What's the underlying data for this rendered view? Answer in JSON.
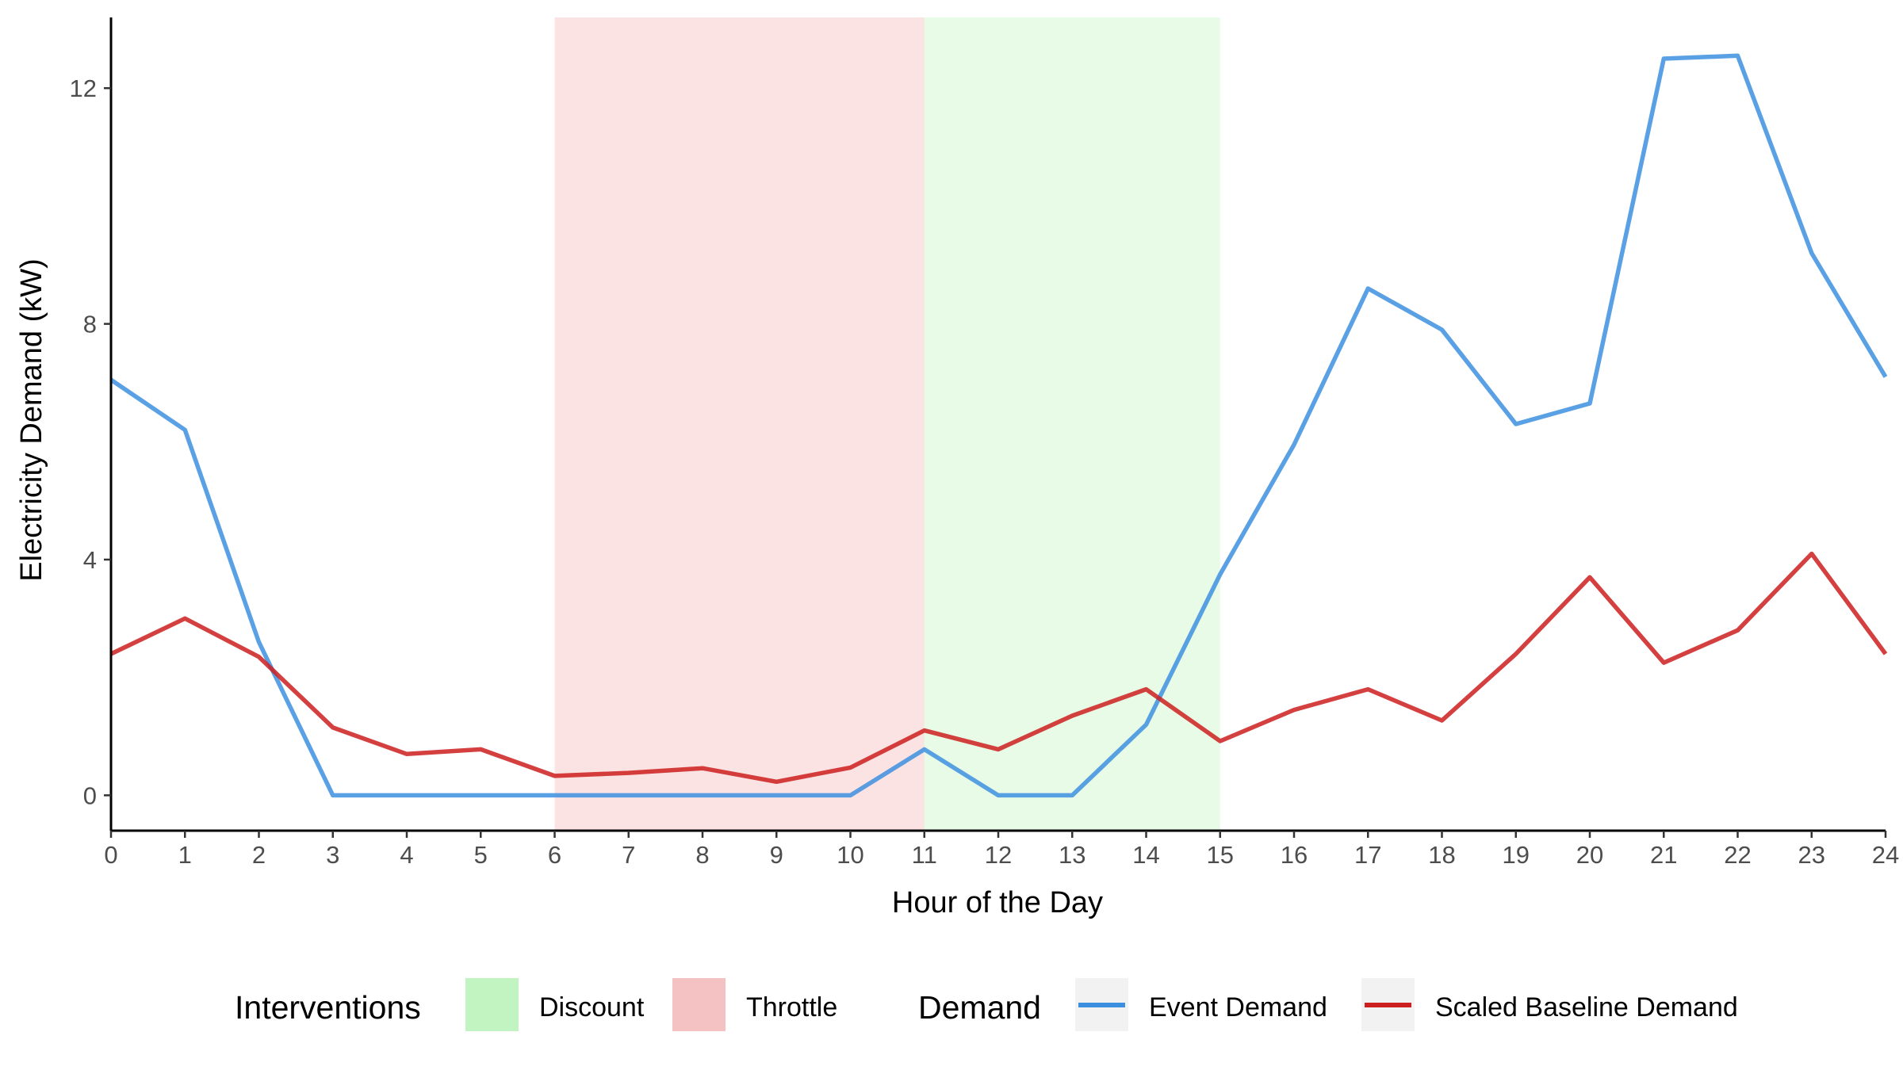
{
  "chart_data": {
    "type": "line",
    "xlabel": "Hour of the Day",
    "ylabel": "Electricity Demand (kW)",
    "xlim": [
      0,
      24
    ],
    "ylim": [
      -0.6,
      13.2
    ],
    "x_ticks": [
      0,
      1,
      2,
      3,
      4,
      5,
      6,
      7,
      8,
      9,
      10,
      11,
      12,
      13,
      14,
      15,
      16,
      17,
      18,
      19,
      20,
      21,
      22,
      23,
      24
    ],
    "y_ticks": [
      0,
      4,
      8,
      12
    ],
    "grid": false,
    "legend_position": "bottom",
    "x": [
      0,
      1,
      2,
      3,
      4,
      5,
      6,
      7,
      8,
      9,
      10,
      11,
      12,
      13,
      14,
      15,
      16,
      17,
      18,
      19,
      20,
      21,
      22,
      23,
      24
    ],
    "series": [
      {
        "name": "Event Demand",
        "color": "#3d8fdf",
        "values": [
          7.05,
          6.2,
          2.6,
          0.0,
          0.0,
          0.0,
          0.0,
          0.0,
          0.0,
          0.0,
          0.0,
          0.78,
          0.0,
          0.0,
          1.2,
          3.75,
          5.95,
          8.6,
          7.9,
          6.3,
          6.65,
          12.5,
          12.55,
          9.2,
          7.1
        ]
      },
      {
        "name": "Scaled Baseline Demand",
        "color": "#cc1f1f",
        "values": [
          2.4,
          3.0,
          2.35,
          1.15,
          0.7,
          0.78,
          0.33,
          0.38,
          0.46,
          0.23,
          0.47,
          1.1,
          0.78,
          1.35,
          1.8,
          0.92,
          1.45,
          1.8,
          1.27,
          2.4,
          3.7,
          2.25,
          2.8,
          4.1,
          2.4
        ]
      }
    ],
    "interventions": [
      {
        "name": "Throttle",
        "start": 6,
        "end": 11,
        "color": "#f08080"
      },
      {
        "name": "Discount",
        "start": 11,
        "end": 15,
        "color": "#90ee90"
      }
    ],
    "legend": {
      "interventions_title": "Interventions",
      "interventions_items": [
        "Discount",
        "Throttle"
      ],
      "demand_title": "Demand",
      "demand_items": [
        "Event Demand",
        "Scaled Baseline Demand"
      ]
    }
  }
}
